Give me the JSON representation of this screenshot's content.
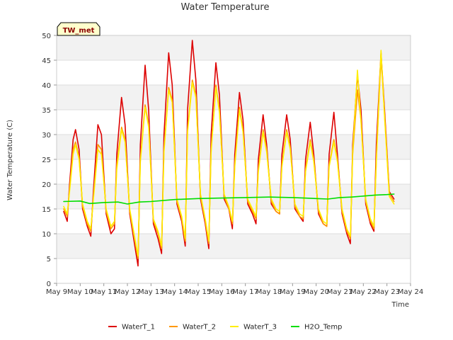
{
  "chart_data": {
    "type": "line",
    "title": "Water Temperature",
    "xlabel": "Time",
    "ylabel": "Water Temperature (C)",
    "badge": "TW_met",
    "ylim": [
      0,
      50
    ],
    "yticks": [
      0,
      5,
      10,
      15,
      20,
      25,
      30,
      35,
      40,
      45,
      50
    ],
    "xlim": [
      0,
      15
    ],
    "xtick_labels": [
      "May 9",
      "May 10",
      "May 11",
      "May 12",
      "May 13",
      "May 14",
      "May 15",
      "May 16",
      "May 17",
      "May 18",
      "May 19",
      "May 20",
      "May 21",
      "May 22",
      "May 23",
      "May 24"
    ],
    "grid": true,
    "legend_position": "bottom",
    "colors": {
      "WaterT_1": "#dd0000",
      "WaterT_2": "#ff9900",
      "WaterT_3": "#ffee00",
      "H2O_Temp": "#00dd00",
      "band": "#f2f2f2",
      "badge_bg": "#ffffcc"
    },
    "series": [
      {
        "name": "WaterT_1",
        "x": [
          0.3,
          0.45,
          0.55,
          0.7,
          0.8,
          0.95,
          1.1,
          1.3,
          1.45,
          1.55,
          1.75,
          1.9,
          2.1,
          2.3,
          2.45,
          2.55,
          2.75,
          2.9,
          3.1,
          3.3,
          3.45,
          3.55,
          3.75,
          3.9,
          4.1,
          4.3,
          4.45,
          4.55,
          4.75,
          4.9,
          5.1,
          5.3,
          5.45,
          5.55,
          5.75,
          5.9,
          6.1,
          6.3,
          6.45,
          6.55,
          6.75,
          6.9,
          7.1,
          7.3,
          7.45,
          7.55,
          7.75,
          7.9,
          8.1,
          8.3,
          8.45,
          8.55,
          8.75,
          8.9,
          9.1,
          9.3,
          9.45,
          9.55,
          9.75,
          9.9,
          10.1,
          10.3,
          10.45,
          10.55,
          10.75,
          10.9,
          11.1,
          11.3,
          11.45,
          11.55,
          11.75,
          11.9,
          12.1,
          12.3,
          12.45,
          12.55,
          12.75,
          12.9,
          13.1,
          13.3,
          13.45,
          13.55,
          13.75,
          13.9,
          14.1,
          14.3
        ],
        "y": [
          14.5,
          12.5,
          20.0,
          29.0,
          31.0,
          27.0,
          15.0,
          11.5,
          9.5,
          18.0,
          32.0,
          30.0,
          14.0,
          10.0,
          11.0,
          26.0,
          37.5,
          32.0,
          14.0,
          8.0,
          3.5,
          28.0,
          44.0,
          35.0,
          12.0,
          9.0,
          6.0,
          30.0,
          46.5,
          40.0,
          16.0,
          12.5,
          7.5,
          35.0,
          49.0,
          41.0,
          17.0,
          12.0,
          7.0,
          30.0,
          44.5,
          38.0,
          17.0,
          15.0,
          11.0,
          26.0,
          38.5,
          33.0,
          16.0,
          14.0,
          12.0,
          25.0,
          34.0,
          28.0,
          16.0,
          14.5,
          14.0,
          26.0,
          34.0,
          29.0,
          15.0,
          13.5,
          12.5,
          25.0,
          32.5,
          26.0,
          14.0,
          12.0,
          11.5,
          26.0,
          34.5,
          26.0,
          14.0,
          10.0,
          8.0,
          28.0,
          42.0,
          35.0,
          16.0,
          12.0,
          10.5,
          28.0,
          46.5,
          35.0,
          18.5,
          17.0
        ]
      },
      {
        "name": "WaterT_2",
        "x": [
          0.3,
          0.45,
          0.55,
          0.7,
          0.8,
          0.95,
          1.1,
          1.3,
          1.45,
          1.55,
          1.75,
          1.9,
          2.1,
          2.3,
          2.45,
          2.55,
          2.75,
          2.9,
          3.1,
          3.3,
          3.45,
          3.55,
          3.75,
          3.9,
          4.1,
          4.3,
          4.45,
          4.55,
          4.75,
          4.9,
          5.1,
          5.3,
          5.45,
          5.55,
          5.75,
          5.9,
          6.1,
          6.3,
          6.45,
          6.55,
          6.75,
          6.9,
          7.1,
          7.3,
          7.45,
          7.55,
          7.75,
          7.9,
          8.1,
          8.3,
          8.45,
          8.55,
          8.75,
          8.9,
          9.1,
          9.3,
          9.45,
          9.55,
          9.75,
          9.9,
          10.1,
          10.3,
          10.45,
          10.55,
          10.75,
          10.9,
          11.1,
          11.3,
          11.45,
          11.55,
          11.75,
          11.9,
          12.1,
          12.3,
          12.45,
          12.55,
          12.75,
          12.9,
          13.1,
          13.3,
          13.45,
          13.55,
          13.75,
          13.9,
          14.1,
          14.3
        ],
        "y": [
          15.0,
          13.5,
          19.0,
          27.0,
          28.5,
          25.5,
          15.5,
          12.0,
          10.5,
          17.0,
          28.0,
          27.0,
          14.5,
          11.0,
          12.0,
          24.0,
          31.5,
          29.0,
          14.5,
          9.0,
          5.0,
          25.0,
          36.0,
          32.0,
          12.5,
          10.0,
          7.0,
          27.0,
          39.5,
          37.0,
          16.5,
          13.0,
          8.5,
          31.0,
          41.0,
          38.0,
          17.5,
          12.5,
          8.0,
          27.0,
          40.0,
          35.0,
          17.5,
          15.0,
          12.0,
          24.0,
          35.5,
          31.0,
          16.5,
          14.5,
          13.0,
          23.0,
          31.0,
          27.0,
          16.5,
          14.5,
          14.0,
          24.0,
          31.0,
          27.5,
          15.5,
          13.5,
          13.0,
          23.0,
          29.0,
          25.0,
          14.5,
          12.0,
          11.5,
          24.0,
          29.0,
          25.0,
          14.5,
          10.5,
          9.0,
          26.0,
          39.0,
          33.0,
          16.5,
          12.5,
          11.0,
          25.0,
          45.5,
          34.0,
          18.0,
          16.5
        ]
      },
      {
        "name": "WaterT_3",
        "x": [
          0.3,
          0.45,
          0.55,
          0.7,
          0.8,
          0.95,
          1.1,
          1.3,
          1.45,
          1.55,
          1.75,
          1.9,
          2.1,
          2.3,
          2.45,
          2.55,
          2.75,
          2.9,
          3.1,
          3.3,
          3.45,
          3.55,
          3.75,
          3.9,
          4.1,
          4.3,
          4.45,
          4.55,
          4.75,
          4.9,
          5.1,
          5.3,
          5.45,
          5.55,
          5.75,
          5.9,
          6.1,
          6.3,
          6.45,
          6.55,
          6.75,
          6.9,
          7.1,
          7.3,
          7.45,
          7.55,
          7.75,
          7.9,
          8.1,
          8.3,
          8.45,
          8.55,
          8.75,
          8.9,
          9.1,
          9.3,
          9.45,
          9.55,
          9.75,
          9.9,
          10.1,
          10.3,
          10.45,
          10.55,
          10.75,
          10.9,
          11.1,
          11.3,
          11.45,
          11.55,
          11.75,
          11.9,
          12.1,
          12.3,
          12.45,
          12.55,
          12.75,
          12.9,
          13.1,
          13.3,
          13.45,
          13.55,
          13.75,
          13.9,
          14.1,
          14.3
        ],
        "y": [
          15.5,
          14.0,
          18.5,
          26.0,
          28.0,
          25.0,
          16.0,
          12.5,
          11.0,
          16.5,
          27.0,
          26.0,
          15.0,
          11.5,
          12.5,
          23.0,
          31.0,
          28.5,
          15.0,
          9.5,
          5.5,
          24.5,
          35.5,
          31.5,
          13.0,
          10.5,
          7.5,
          26.5,
          39.0,
          36.5,
          17.0,
          13.5,
          9.0,
          30.5,
          40.5,
          37.5,
          18.0,
          13.0,
          8.5,
          26.5,
          39.5,
          34.5,
          18.0,
          15.5,
          12.5,
          23.5,
          35.0,
          30.5,
          17.0,
          15.0,
          13.5,
          22.5,
          30.5,
          26.5,
          17.0,
          15.0,
          14.5,
          23.5,
          30.5,
          27.0,
          16.0,
          14.0,
          13.5,
          22.5,
          28.5,
          24.5,
          15.0,
          12.5,
          12.0,
          23.5,
          28.5,
          24.5,
          15.0,
          11.0,
          9.5,
          26.5,
          43.0,
          32.5,
          17.0,
          13.0,
          11.5,
          24.5,
          47.0,
          33.5,
          17.5,
          16.0
        ]
      },
      {
        "name": "H2O_Temp",
        "x": [
          0.3,
          1.0,
          1.4,
          2.0,
          2.6,
          3.0,
          3.5,
          4.0,
          5.0,
          6.0,
          7.0,
          8.0,
          9.0,
          10.0,
          10.5,
          11.0,
          11.5,
          12.0,
          12.5,
          13.0,
          13.5,
          14.0,
          14.3
        ],
        "y": [
          16.5,
          16.6,
          16.1,
          16.3,
          16.4,
          16.0,
          16.4,
          16.5,
          16.9,
          17.1,
          17.2,
          17.3,
          17.4,
          17.3,
          17.2,
          17.1,
          17.0,
          17.3,
          17.4,
          17.6,
          17.8,
          17.9,
          18.0
        ]
      }
    ]
  }
}
